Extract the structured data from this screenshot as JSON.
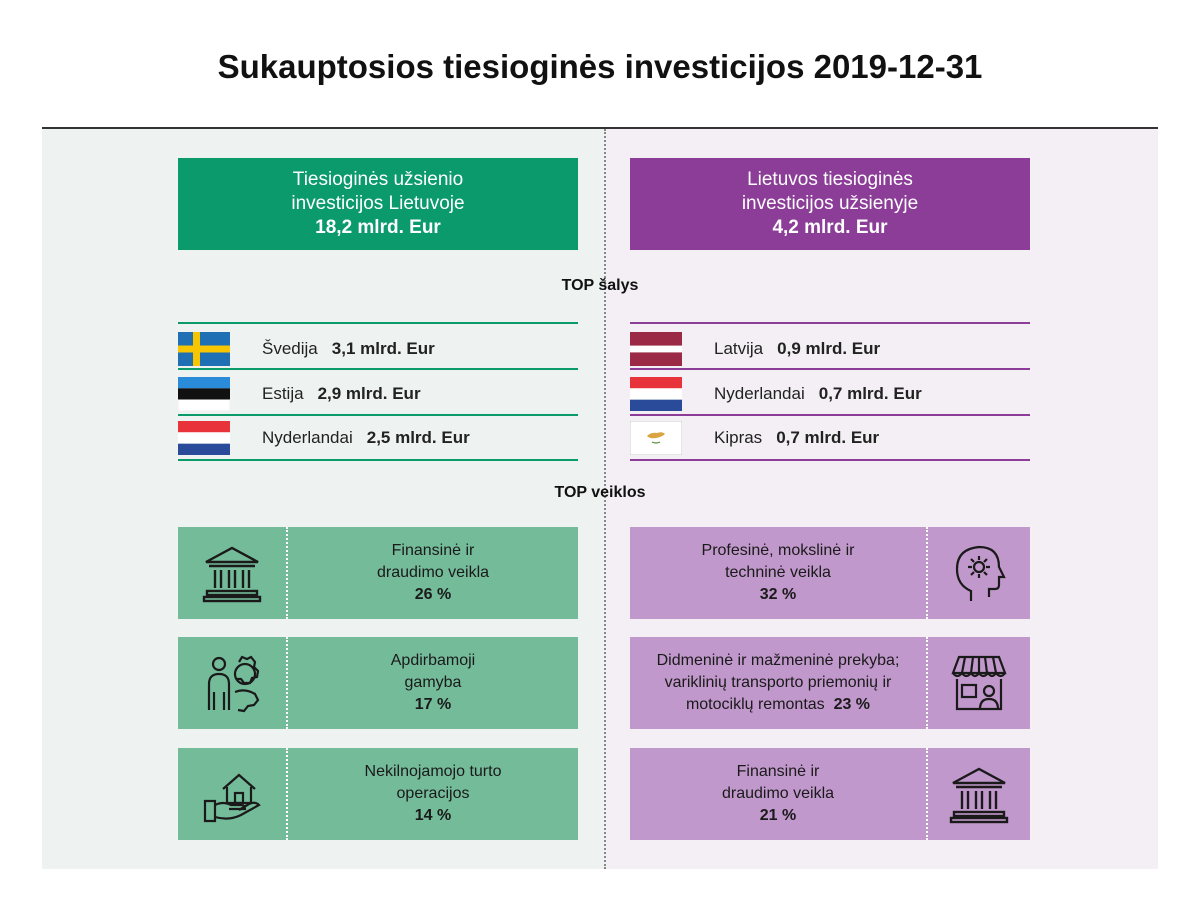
{
  "title": "Sukauptosios tiesioginės investicijos 2019-12-31",
  "colors": {
    "green": "#0a9a6c",
    "purple": "#8b3d97",
    "green_light": "#74bb9a",
    "purple_light": "#c198cb"
  },
  "left": {
    "header_line1": "Tiesioginės užsienio",
    "header_line2": "investicijos Lietuvoje",
    "amount": "18,2 mlrd. Eur",
    "countries": [
      {
        "name": "Švedija",
        "amount": "3,1 mlrd. Eur",
        "flag": "sweden-flag"
      },
      {
        "name": "Estija",
        "amount": "2,9 mlrd. Eur",
        "flag": "estonia-flag"
      },
      {
        "name": "Nyderlandai",
        "amount": "2,5 mlrd. Eur",
        "flag": "netherlands-flag"
      }
    ],
    "activities": [
      {
        "line1": "Finansinė ir",
        "line2": "draudimo veikla",
        "pct": "26 %",
        "icon": "bank-icon"
      },
      {
        "line1": "Apdirbamoji",
        "line2": "gamyba",
        "pct": "17 %",
        "icon": "worker-gear-icon"
      },
      {
        "line1": "Nekilnojamojo turto",
        "line2": "operacijos",
        "pct": "14 %",
        "icon": "house-hand-icon"
      }
    ]
  },
  "right": {
    "header_line1": "Lietuvos tiesioginės",
    "header_line2": "investicijos užsienyje",
    "amount": "4,2 mlrd. Eur",
    "countries": [
      {
        "name": "Latvija",
        "amount": "0,9 mlrd. Eur",
        "flag": "latvia-flag"
      },
      {
        "name": "Nyderlandai",
        "amount": "0,7 mlrd. Eur",
        "flag": "netherlands-flag"
      },
      {
        "name": "Kipras",
        "amount": "0,7 mlrd. Eur",
        "flag": "cyprus-flag"
      }
    ],
    "activities": [
      {
        "line1": "Profesinė, mokslinė ir",
        "line2": "techninė veikla",
        "line3": "",
        "pct": "32 %",
        "icon": "head-gear-icon"
      },
      {
        "line1": "Didmeninė ir mažmeninė prekyba;",
        "line2": "variklinių transporto priemonių ir",
        "line3": "motociklų remontas",
        "pct": "23 %",
        "icon": "shop-icon"
      },
      {
        "line1": "Finansinė ir",
        "line2": "draudimo veikla",
        "line3": "",
        "pct": "21 %",
        "icon": "bank-icon"
      }
    ]
  },
  "labels": {
    "top_countries": "TOP šalys",
    "top_activities": "TOP veiklos"
  }
}
